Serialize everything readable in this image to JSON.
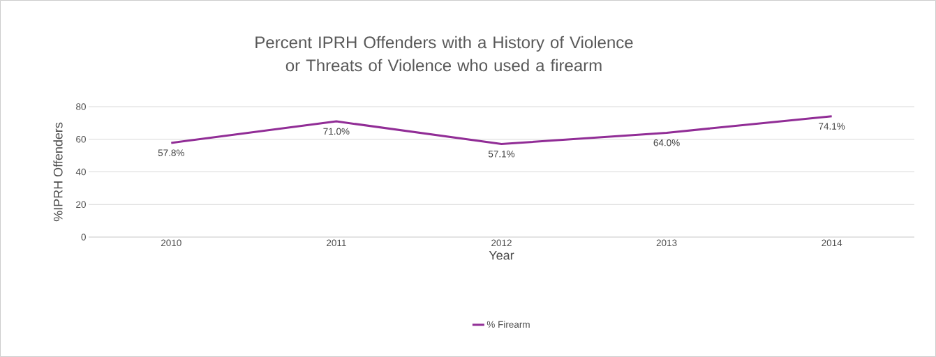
{
  "chart_data": {
    "type": "line",
    "title": "Percent IPRH Offenders with a History of Violence or Threats of Violence who used a firearm",
    "xlabel": "Year",
    "ylabel": "%IPRH Offenders",
    "categories": [
      "2010",
      "2011",
      "2012",
      "2013",
      "2014"
    ],
    "series": [
      {
        "name": "% Firearm",
        "color": "#912d96",
        "values": [
          57.8,
          71.0,
          57.1,
          64.0,
          74.1
        ],
        "value_labels": [
          "57.8%",
          "71.0%",
          "57.1%",
          "64.0%",
          "74.1%"
        ]
      }
    ],
    "ylim": [
      0,
      80
    ],
    "yticks": [
      0,
      20,
      40,
      60,
      80
    ],
    "grid": "y",
    "legend": "bottom",
    "marker": "none",
    "line_style": "solid"
  }
}
